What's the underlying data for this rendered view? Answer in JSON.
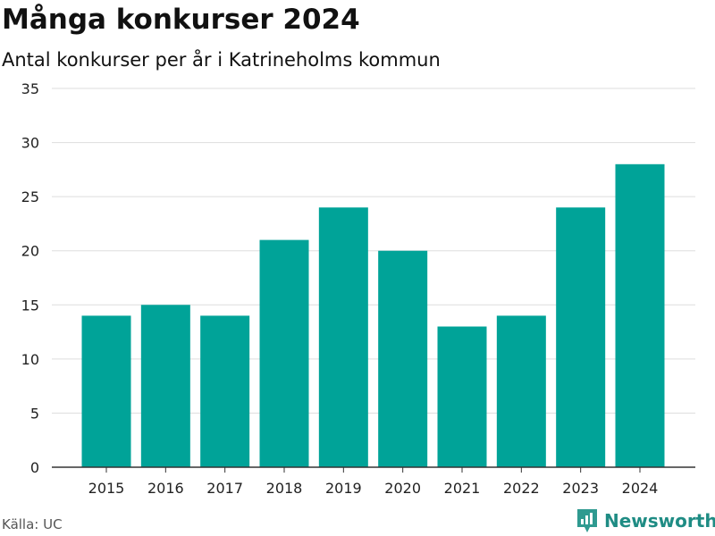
{
  "header": {
    "title": "Många konkurser 2024",
    "subtitle": "Antal konkurser per år i Katrineholms kommun"
  },
  "footer": {
    "source": "Källa: UC",
    "brand": "Newsworthy"
  },
  "colors": {
    "bar": "#00a398",
    "grid": "#dddddd",
    "axis": "#333333",
    "brand": "#1f8c84"
  },
  "chart_data": {
    "type": "bar",
    "title": "Många konkurser 2024",
    "subtitle": "Antal konkurser per år i Katrineholms kommun",
    "xlabel": "",
    "ylabel": "",
    "categories": [
      "2015",
      "2016",
      "2017",
      "2018",
      "2019",
      "2020",
      "2021",
      "2022",
      "2023",
      "2024"
    ],
    "values": [
      14,
      15,
      14,
      21,
      24,
      20,
      13,
      14,
      24,
      28
    ],
    "ylim": [
      0,
      35
    ],
    "yticks": [
      0,
      5,
      10,
      15,
      20,
      25,
      30,
      35
    ],
    "grid": true,
    "legend": "none"
  }
}
